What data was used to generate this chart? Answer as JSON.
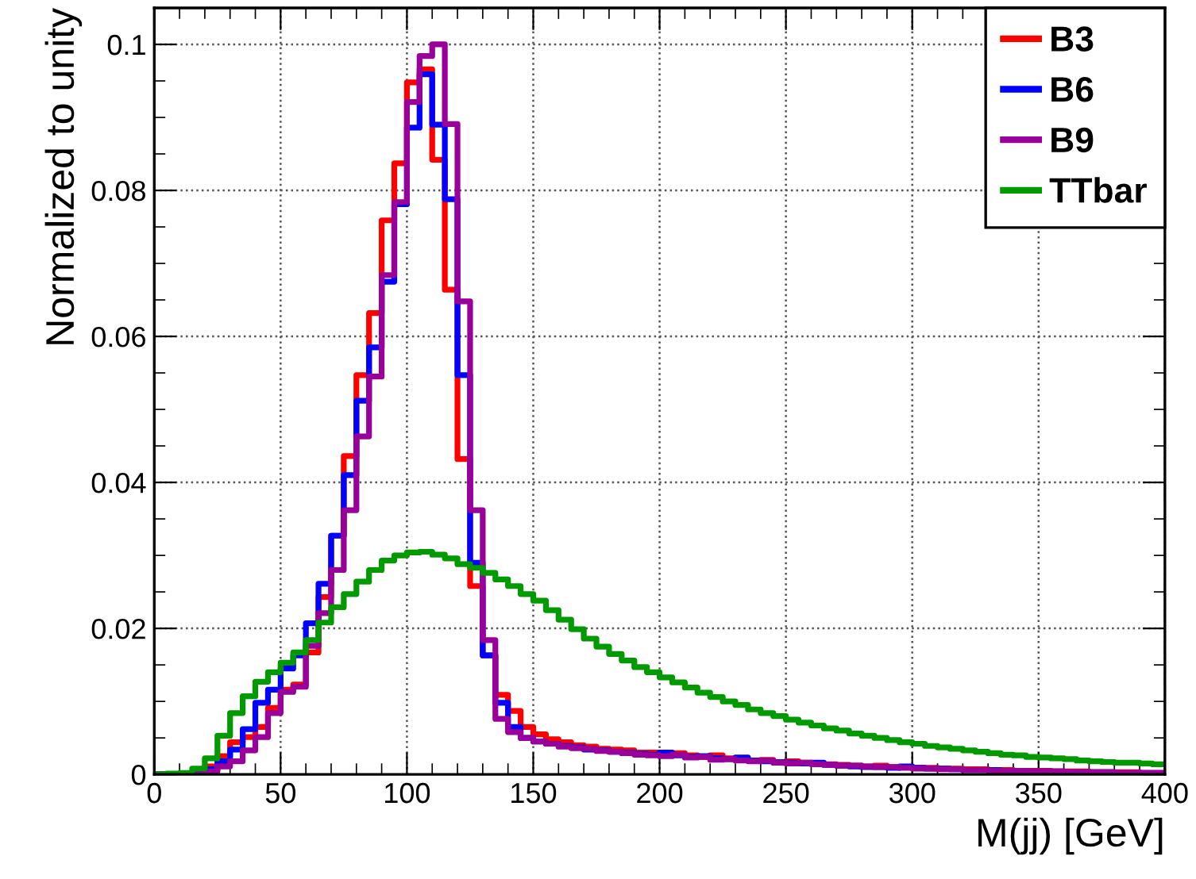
{
  "chart_data": {
    "type": "histogram",
    "xlabel": "M(jj) [GeV]",
    "ylabel": "Normalized to unity",
    "bins": [
      0,
      5,
      10,
      15,
      20,
      25,
      30,
      35,
      40,
      45,
      50,
      55,
      60,
      65,
      70,
      75,
      80,
      85,
      90,
      95,
      100,
      105,
      110,
      115,
      120,
      125,
      130,
      135,
      140,
      145,
      150,
      155,
      160,
      165,
      170,
      175,
      180,
      185,
      190,
      195,
      200,
      205,
      210,
      215,
      220,
      225,
      230,
      235,
      240,
      245,
      250,
      255,
      260,
      265,
      270,
      275,
      280,
      285,
      290,
      295,
      300,
      305,
      310,
      315,
      320,
      325,
      330,
      335,
      340,
      345,
      350,
      355,
      360,
      365,
      370,
      375,
      380,
      385,
      390,
      395,
      400
    ],
    "series": [
      {
        "name": "B3",
        "color": "#ff0000",
        "values": [
          0,
          0,
          0,
          0.0003,
          0.0011,
          0.0025,
          0.0044,
          0.0051,
          0.0065,
          0.0091,
          0.0116,
          0.0123,
          0.0167,
          0.0243,
          0.0327,
          0.0436,
          0.0547,
          0.0632,
          0.0759,
          0.0837,
          0.0948,
          0.0966,
          0.0842,
          0.0664,
          0.0432,
          0.0258,
          0.0163,
          0.0109,
          0.0087,
          0.0065,
          0.0055,
          0.0048,
          0.0044,
          0.004,
          0.0038,
          0.0035,
          0.0034,
          0.0033,
          0.003,
          0.003,
          0.0028,
          0.0029,
          0.0026,
          0.0024,
          0.0026,
          0.0022,
          0.0021,
          0.0019,
          0.002,
          0.0017,
          0.0018,
          0.0016,
          0.0015,
          0.0014,
          0.0013,
          0.0012,
          0.0011,
          0.0012,
          0.001,
          0.001,
          0.0009,
          0.0009,
          0.0008,
          0.0008,
          0.0007,
          0.0007,
          0.0006,
          0.0006,
          0.0005,
          0.0005,
          0.0005,
          0.0004,
          0.0004,
          0.0004,
          0.0003,
          0.0003,
          0.0003,
          0.0003,
          0.0002,
          0.0002
        ]
      },
      {
        "name": "B6",
        "color": "#0000ff",
        "values": [
          0,
          0,
          0,
          0.0002,
          0.0007,
          0.0018,
          0.0034,
          0.0062,
          0.0098,
          0.0116,
          0.0145,
          0.0163,
          0.0207,
          0.0261,
          0.0327,
          0.041,
          0.0512,
          0.0585,
          0.0675,
          0.0781,
          0.0886,
          0.0959,
          0.089,
          0.0788,
          0.0547,
          0.029,
          0.0163,
          0.0098,
          0.0065,
          0.005,
          0.0045,
          0.0042,
          0.0039,
          0.0037,
          0.0034,
          0.0033,
          0.0031,
          0.003,
          0.0028,
          0.0027,
          0.003,
          0.0026,
          0.0024,
          0.0025,
          0.0022,
          0.0021,
          0.0023,
          0.0019,
          0.0018,
          0.0017,
          0.0016,
          0.0015,
          0.0016,
          0.0013,
          0.0012,
          0.0011,
          0.001,
          0.001,
          0.0009,
          0.0011,
          0.0009,
          0.0008,
          0.0008,
          0.0007,
          0.0006,
          0.0006,
          0.0006,
          0.0005,
          0.0005,
          0.0004,
          0.0004,
          0.0004,
          0.0003,
          0.0003,
          0.0003,
          0.0003,
          0.0002,
          0.0002,
          0.0002,
          0.0002
        ]
      },
      {
        "name": "B9",
        "color": "#990099",
        "values": [
          0,
          0,
          0,
          0,
          0.0004,
          0.0011,
          0.0018,
          0.0033,
          0.0051,
          0.0084,
          0.0113,
          0.012,
          0.0176,
          0.0221,
          0.028,
          0.0362,
          0.0463,
          0.0545,
          0.0684,
          0.0784,
          0.0921,
          0.0984,
          0.1,
          0.0891,
          0.0648,
          0.0362,
          0.0184,
          0.0076,
          0.0058,
          0.005,
          0.0045,
          0.0042,
          0.0038,
          0.0036,
          0.0035,
          0.0032,
          0.0031,
          0.0029,
          0.0027,
          0.0026,
          0.0025,
          0.0027,
          0.0023,
          0.0024,
          0.002,
          0.0021,
          0.0019,
          0.0018,
          0.0019,
          0.0016,
          0.0015,
          0.0016,
          0.0014,
          0.0013,
          0.0012,
          0.0012,
          0.0011,
          0.001,
          0.001,
          0.0009,
          0.0008,
          0.0008,
          0.0007,
          0.0007,
          0.0006,
          0.0006,
          0.0005,
          0.0005,
          0.0005,
          0.0004,
          0.0004,
          0.0004,
          0.0003,
          0.0003,
          0.0003,
          0.0003,
          0.0002,
          0.0002,
          0.0002,
          0.0002
        ]
      },
      {
        "name": "TTbar",
        "color": "#009900",
        "values": [
          0,
          0.0001,
          0.0002,
          0.0008,
          0.0022,
          0.0053,
          0.0084,
          0.0107,
          0.0127,
          0.014,
          0.0153,
          0.0167,
          0.0184,
          0.0208,
          0.0229,
          0.0247,
          0.0264,
          0.028,
          0.0293,
          0.03,
          0.0304,
          0.0305,
          0.0301,
          0.0296,
          0.0288,
          0.0283,
          0.0276,
          0.0267,
          0.0258,
          0.0247,
          0.0238,
          0.0225,
          0.0212,
          0.0199,
          0.0186,
          0.0175,
          0.0165,
          0.0156,
          0.0147,
          0.014,
          0.0133,
          0.0126,
          0.0119,
          0.0112,
          0.0106,
          0.01,
          0.0095,
          0.0089,
          0.0084,
          0.008,
          0.0075,
          0.0071,
          0.0067,
          0.0063,
          0.006,
          0.0056,
          0.0053,
          0.005,
          0.0047,
          0.0044,
          0.0042,
          0.0039,
          0.0037,
          0.0035,
          0.0033,
          0.0031,
          0.0029,
          0.0027,
          0.0026,
          0.0024,
          0.0023,
          0.0022,
          0.0021,
          0.0019,
          0.0018,
          0.0017,
          0.0016,
          0.0016,
          0.0015,
          0.0014
        ]
      }
    ],
    "xlim": [
      0,
      400
    ],
    "ylim": [
      0,
      0.105
    ],
    "xticks": [
      0,
      50,
      100,
      150,
      200,
      250,
      300,
      350,
      400
    ],
    "yticks": [
      0,
      0.02,
      0.04,
      0.06,
      0.08,
      {
        "value": 0.1,
        "label": "0.1"
      }
    ],
    "grid": true,
    "legend": "top right",
    "line_style": "solid"
  }
}
